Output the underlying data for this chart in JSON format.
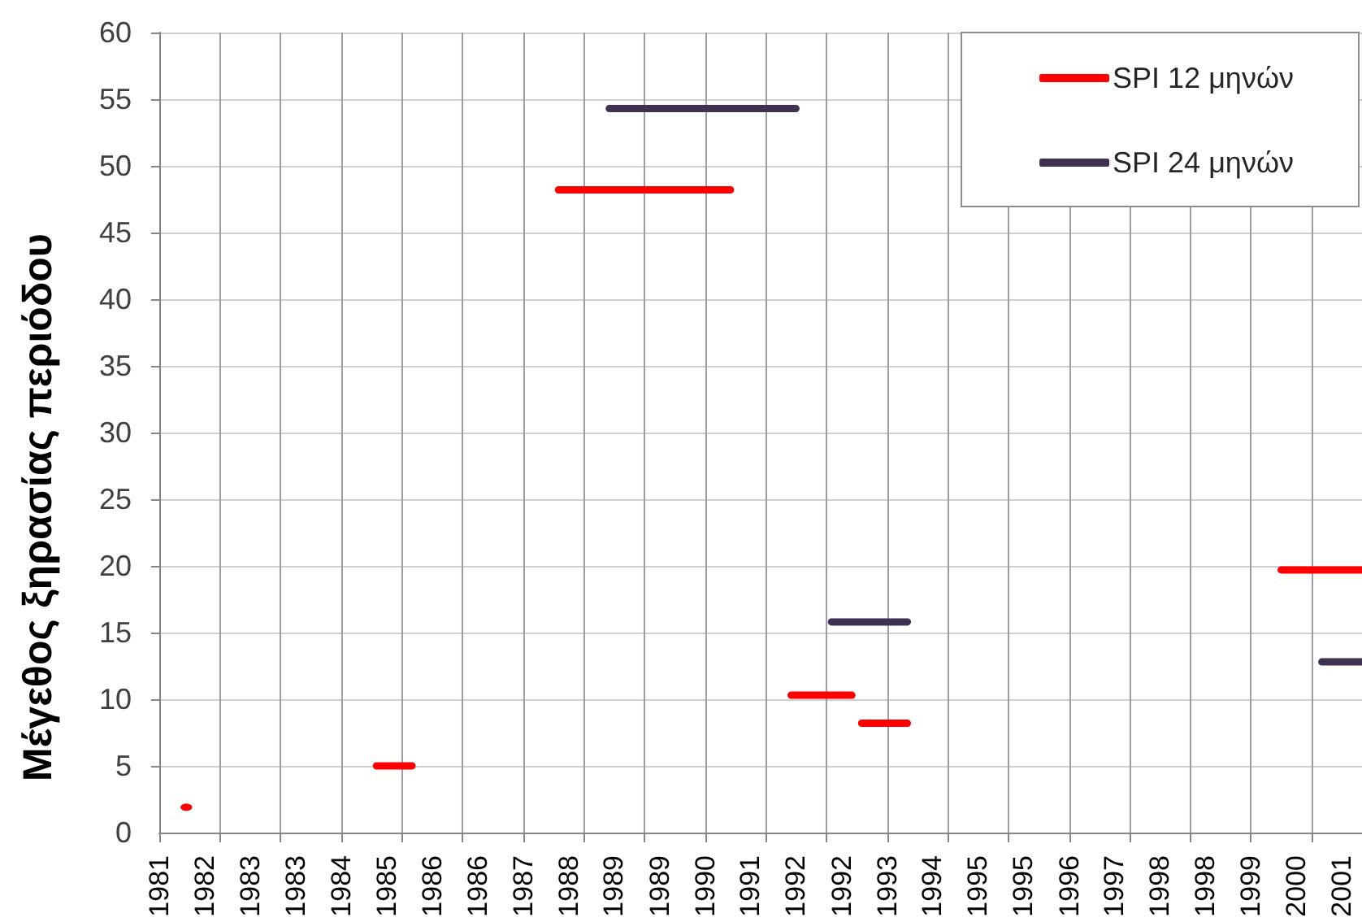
{
  "chart_data": {
    "type": "line",
    "ylabel": "Μέγεθος ξηρασίας περιόδου",
    "xlim": [
      "1981-09",
      "2001-07"
    ],
    "xticks": [
      {
        "value": "1981-09",
        "label": null
      },
      {
        "value": "1981-09",
        "label": "1981"
      },
      {
        "value": "1982-06",
        "label": "1982"
      },
      {
        "value": "1982-09",
        "label": null
      },
      {
        "value": "1983-03",
        "label": "1983"
      },
      {
        "value": "1983-09",
        "label": null
      },
      {
        "value": "1983-12",
        "label": "1983"
      },
      {
        "value": "1984-09",
        "label": null
      },
      {
        "value": "1984-09",
        "label": "1984"
      },
      {
        "value": "1985-06",
        "label": "1985"
      },
      {
        "value": "1985-09",
        "label": null
      },
      {
        "value": "1986-03",
        "label": "1986"
      },
      {
        "value": "1986-09",
        "label": null
      },
      {
        "value": "1986-12",
        "label": "1986"
      },
      {
        "value": "1987-09",
        "label": null
      },
      {
        "value": "1987-09",
        "label": "1987"
      },
      {
        "value": "1988-06",
        "label": "1988"
      },
      {
        "value": "1988-09",
        "label": null
      },
      {
        "value": "1989-03",
        "label": "1989"
      },
      {
        "value": "1989-09",
        "label": null
      },
      {
        "value": "1989-12",
        "label": "1989"
      },
      {
        "value": "1990-09",
        "label": null
      },
      {
        "value": "1990-09",
        "label": "1990"
      },
      {
        "value": "1991-06",
        "label": "1991"
      },
      {
        "value": "1991-09",
        "label": null
      },
      {
        "value": "1992-03",
        "label": "1992"
      },
      {
        "value": "1992-09",
        "label": null
      },
      {
        "value": "1992-12",
        "label": "1992"
      },
      {
        "value": "1993-09",
        "label": null
      },
      {
        "value": "1993-09",
        "label": "1993"
      },
      {
        "value": "1994-06",
        "label": "1994"
      },
      {
        "value": "1994-09",
        "label": null
      },
      {
        "value": "1995-03",
        "label": "1995"
      },
      {
        "value": "1995-09",
        "label": null
      },
      {
        "value": "1995-12",
        "label": "1995"
      },
      {
        "value": "1996-09",
        "label": null
      },
      {
        "value": "1996-09",
        "label": "1996"
      },
      {
        "value": "1997-06",
        "label": "1997"
      },
      {
        "value": "1997-09",
        "label": null
      },
      {
        "value": "1998-03",
        "label": "1998"
      },
      {
        "value": "1998-09",
        "label": null
      },
      {
        "value": "1998-12",
        "label": "1998"
      },
      {
        "value": "1999-09",
        "label": null
      },
      {
        "value": "1999-09",
        "label": "1999"
      },
      {
        "value": "2000-06",
        "label": "2000"
      },
      {
        "value": "2000-09",
        "label": null
      },
      {
        "value": "2001-03",
        "label": "2001"
      }
    ],
    "ylim": [
      0,
      60
    ],
    "yticks": [
      0,
      5,
      10,
      15,
      20,
      25,
      30,
      35,
      40,
      45,
      50,
      55,
      60
    ],
    "grid": true,
    "legend": "top right",
    "marker": "none",
    "line_style": "solid",
    "series": [
      {
        "name": "SPI 12 μηνών",
        "color": "#ff0000",
        "x": [
          "1982-02-11",
          "1982-04",
          "1985-04",
          "1985-11",
          "1985-12",
          "1988-04",
          "1991-02",
          "1991-03",
          "1992-02",
          "1993-02",
          "1993-03",
          "1993-04",
          "1994-01",
          "1994-02",
          "2000-03",
          "2001-07"
        ],
        "values": [
          1.9,
          null,
          5,
          5,
          null,
          48.2,
          48.2,
          null,
          10.3,
          10.3,
          null,
          8.2,
          8.2,
          null,
          19.7,
          19.7
        ]
      },
      {
        "name": "SPI 24 μηνών",
        "color": "#403152",
        "x": [
          "1989-02",
          "1992-03",
          "1992-04",
          "1992-10",
          "1994-01",
          "1994-02",
          "2000-11",
          "2001-07"
        ],
        "values": [
          54.3,
          54.3,
          null,
          15.8,
          15.8,
          null,
          12.8,
          12.8
        ]
      }
    ]
  }
}
